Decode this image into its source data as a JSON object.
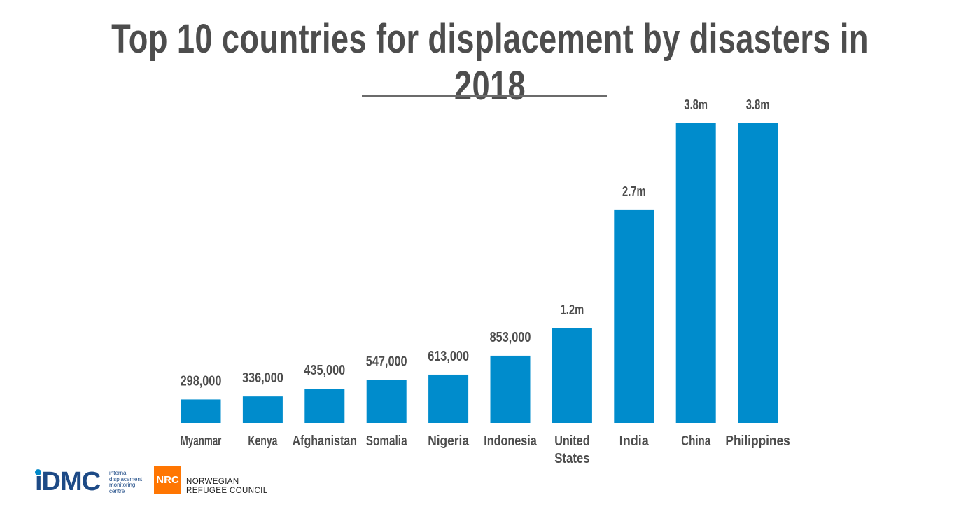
{
  "chart_data": {
    "type": "bar",
    "title": "Top 10 countries for displacement by disasters in 2018",
    "categories": [
      "Myanmar",
      "Kenya",
      "Afghanistan",
      "Somalia",
      "Nigeria",
      "Indonesia",
      "United States",
      "India",
      "China",
      "Philippines"
    ],
    "category_lines": [
      [
        "Myanmar"
      ],
      [
        "Kenya"
      ],
      [
        "Afghanistan"
      ],
      [
        "Somalia"
      ],
      [
        "Nigeria"
      ],
      [
        "Indonesia"
      ],
      [
        "United",
        "States"
      ],
      [
        "India"
      ],
      [
        "China"
      ],
      [
        "Philippines"
      ]
    ],
    "values": [
      298000,
      336000,
      435000,
      547000,
      613000,
      853000,
      1200000,
      2700000,
      3800000,
      3800000
    ],
    "value_labels": [
      "298,000",
      "336,000",
      "435,000",
      "547,000",
      "613,000",
      "853,000",
      "1.2m",
      "2.7m",
      "3.8m",
      "3.8m"
    ],
    "bar_color": "#008ccc",
    "label_color": "#4d4d4d",
    "xlabel": "",
    "ylabel": "",
    "grid": false
  },
  "logos": {
    "idmc_mark": "iDMC",
    "idmc_text": [
      "internal",
      "displacement",
      "monitoring",
      "centre"
    ],
    "nrc_mark": "NRC",
    "nrc_text": [
      "NORWEGIAN",
      "REFUGEE COUNCIL"
    ]
  }
}
